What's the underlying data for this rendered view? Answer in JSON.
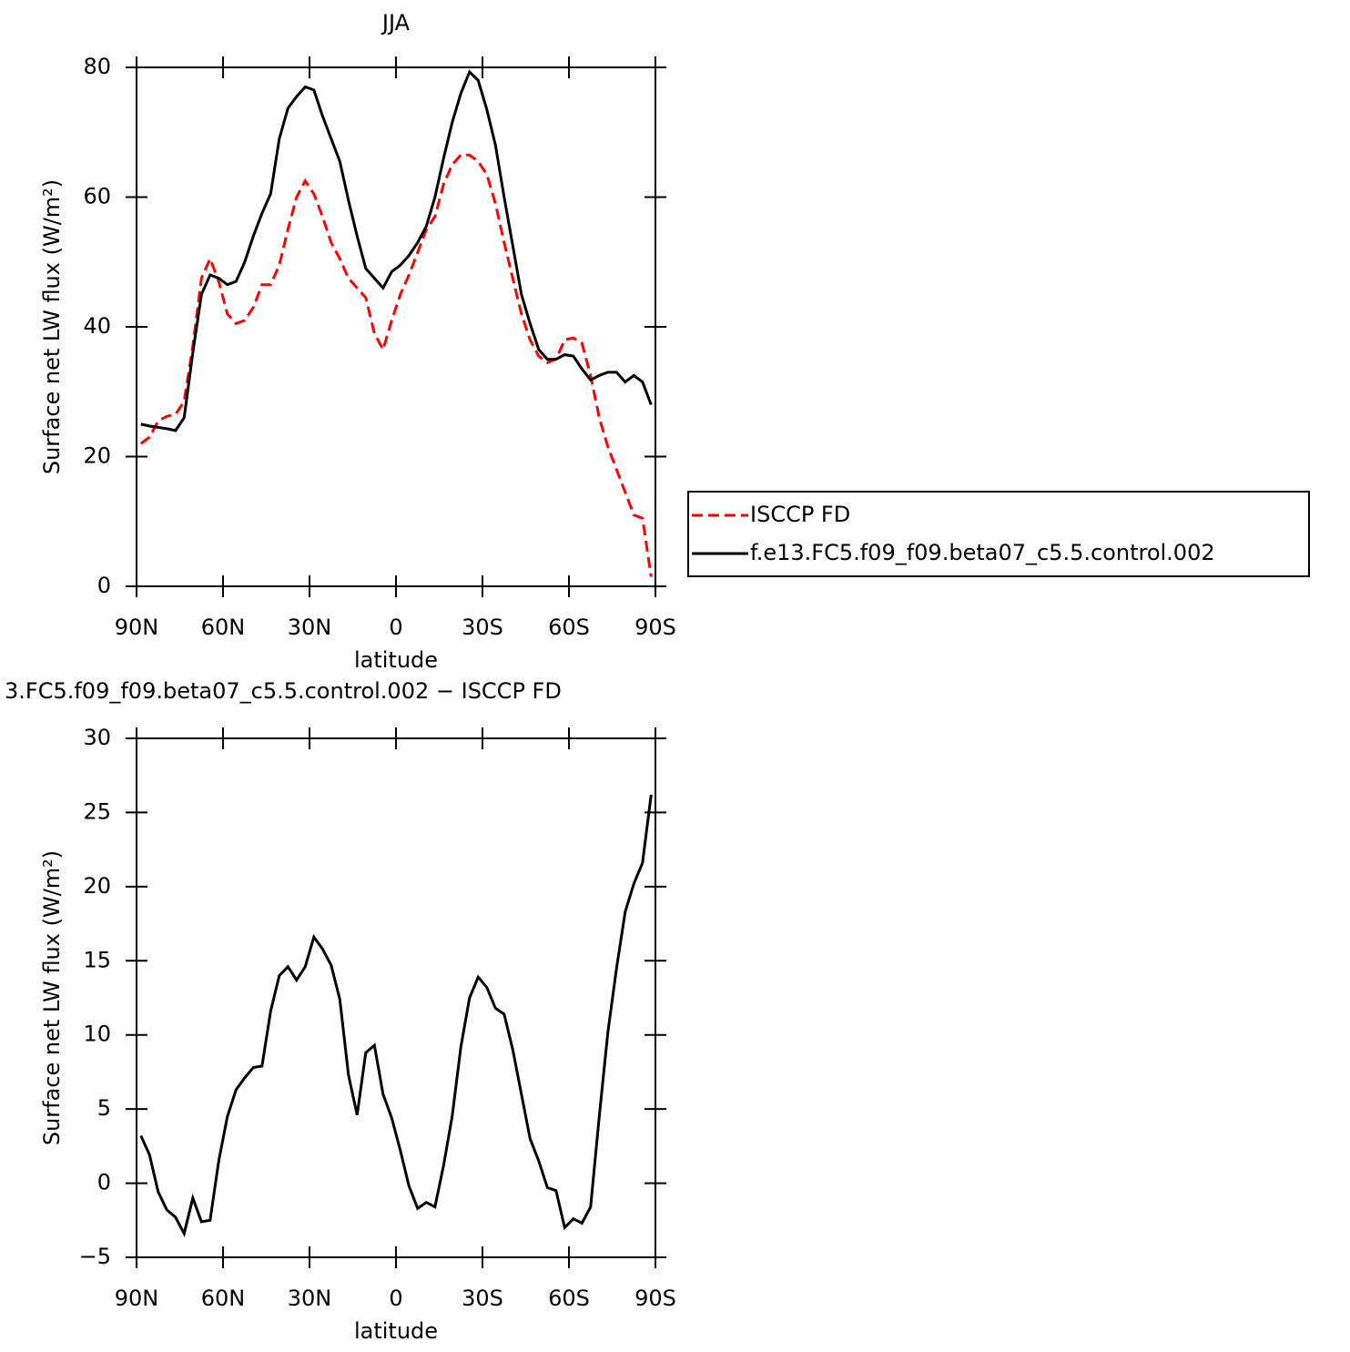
{
  "chart_data": [
    {
      "type": "line",
      "title": "JJA",
      "xlabel": "latitude",
      "ylabel": "Surface net LW flux (W/m²)",
      "x": [
        88.5,
        85.5,
        82.5,
        79.5,
        76.5,
        73.5,
        70.5,
        67.5,
        64.5,
        61.5,
        58.5,
        55.5,
        52.5,
        49.5,
        46.5,
        43.5,
        40.5,
        37.5,
        34.5,
        31.5,
        28.5,
        25.5,
        22.5,
        19.5,
        16.5,
        13.5,
        10.5,
        7.5,
        4.5,
        1.5,
        -1.5,
        -4.5,
        -7.5,
        -10.5,
        -13.5,
        -16.5,
        -19.5,
        -22.5,
        -25.5,
        -28.5,
        -31.5,
        -34.5,
        -37.5,
        -40.5,
        -43.5,
        -46.5,
        -49.5,
        -52.5,
        -55.5,
        -58.5,
        -61.5,
        -64.5,
        -67.5,
        -70.5,
        -73.5,
        -76.5,
        -79.5,
        -82.5,
        -85.5,
        -88.5
      ],
      "series": [
        {
          "name": "ISCCP FD",
          "color": "#ff0000",
          "line_style": "dashed",
          "values": [
            22,
            23,
            25.5,
            26.2,
            26.5,
            28.5,
            37,
            47.5,
            50.5,
            47,
            42,
            40.5,
            41,
            43,
            46.5,
            46.5,
            49.5,
            55,
            60,
            62.5,
            60.5,
            57,
            53,
            50.5,
            47.5,
            46,
            44.5,
            39,
            36.5,
            41,
            45,
            48,
            51.5,
            55,
            57,
            62,
            65,
            66.5,
            66.5,
            65.5,
            63.5,
            59,
            53,
            47.5,
            42,
            38,
            35.5,
            34.5,
            35,
            38,
            38.3,
            37.5,
            32.5,
            26,
            21.5,
            18,
            14.5,
            11,
            10.5,
            1.5
          ]
        },
        {
          "name": "f.e13.FC5.f09_f09.beta07_c5.5.control.002",
          "color": "#000000",
          "line_style": "solid",
          "values": [
            25,
            24.7,
            24.5,
            24.3,
            24,
            26,
            36,
            45,
            48,
            47.5,
            46.5,
            47,
            50,
            54,
            57.5,
            60.5,
            69,
            73.7,
            75.5,
            77,
            76.5,
            72.5,
            69,
            65.5,
            59.5,
            54,
            49,
            47.5,
            46,
            48.5,
            49.5,
            51,
            53,
            55.5,
            60,
            66,
            71.5,
            76,
            79.3,
            78,
            73.5,
            68,
            60,
            52.5,
            45,
            40.5,
            36.5,
            35,
            35,
            35.7,
            35.5,
            33.5,
            31.8,
            32.5,
            33,
            33,
            31.5,
            32.5,
            31.5,
            28
          ]
        }
      ],
      "xlim": [
        90,
        -90
      ],
      "xticks": [
        {
          "value": 90,
          "label": "90N"
        },
        {
          "value": 60,
          "label": "60N"
        },
        {
          "value": 30,
          "label": "30N"
        },
        0,
        {
          "value": -30,
          "label": "30S"
        },
        {
          "value": -60,
          "label": "60S"
        },
        {
          "value": -90,
          "label": "90S"
        }
      ],
      "ylim": [
        0,
        80
      ],
      "yticks": [
        0,
        20,
        40,
        60,
        80
      ],
      "legend": "outside-right"
    },
    {
      "type": "line",
      "title": "3.FC5.f09_f09.beta07_c5.5.control.002 − ISCCP FD",
      "xlabel": "latitude",
      "ylabel": "Surface net LW flux (W/m²)",
      "x": [
        88.5,
        85.5,
        82.5,
        79.5,
        76.5,
        73.5,
        70.5,
        67.5,
        64.5,
        61.5,
        58.5,
        55.5,
        52.5,
        49.5,
        46.5,
        43.5,
        40.5,
        37.5,
        34.5,
        31.5,
        28.5,
        25.5,
        22.5,
        19.5,
        16.5,
        13.5,
        10.5,
        7.5,
        4.5,
        1.5,
        -1.5,
        -4.5,
        -7.5,
        -10.5,
        -13.5,
        -16.5,
        -19.5,
        -22.5,
        -25.5,
        -28.5,
        -31.5,
        -34.5,
        -37.5,
        -40.5,
        -43.5,
        -46.5,
        -49.5,
        -52.5,
        -55.5,
        -58.5,
        -61.5,
        -64.5,
        -67.5,
        -70.5,
        -73.5,
        -76.5,
        -79.5,
        -82.5,
        -85.5,
        -88.5
      ],
      "values": [
        3.2,
        1.9,
        -0.6,
        -1.8,
        -2.3,
        -3.4,
        -1.0,
        -2.6,
        -2.5,
        1.5,
        4.5,
        6.3,
        7.1,
        7.8,
        7.9,
        11.6,
        14.0,
        14.6,
        13.7,
        14.6,
        16.6,
        15.8,
        14.7,
        12.4,
        7.3,
        4.6,
        8.8,
        9.3,
        6.0,
        4.4,
        2.2,
        -0.2,
        -1.7,
        -1.3,
        -1.6,
        1.2,
        4.5,
        9.2,
        12.5,
        13.9,
        13.2,
        11.8,
        11.4,
        9.0,
        6.0,
        3.0,
        1.5,
        -0.3,
        -0.5,
        -3.0,
        -2.4,
        -2.7,
        -1.6,
        4.5,
        10.2,
        14.5,
        18.3,
        20.2,
        21.6,
        26.2
      ],
      "color": "#000000",
      "xlim": [
        90,
        -90
      ],
      "xticks": [
        {
          "value": 90,
          "label": "90N"
        },
        {
          "value": 60,
          "label": "60N"
        },
        {
          "value": 30,
          "label": "30N"
        },
        0,
        {
          "value": -30,
          "label": "30S"
        },
        {
          "value": -60,
          "label": "60S"
        },
        {
          "value": -90,
          "label": "90S"
        }
      ],
      "ylim": [
        -5,
        30
      ],
      "yticks": [
        {
          "value": -5,
          "label": "−5"
        },
        0,
        5,
        10,
        15,
        20,
        25,
        30
      ]
    }
  ]
}
